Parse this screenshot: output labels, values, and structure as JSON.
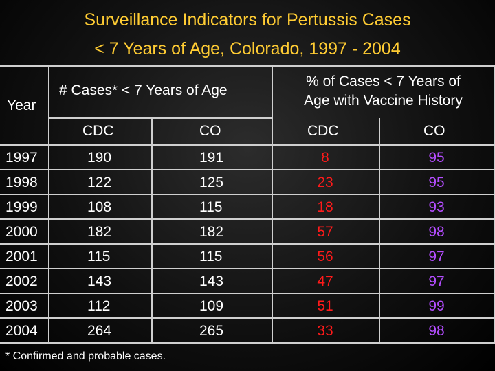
{
  "title": {
    "line1": "Surveillance Indicators for Pertussis Cases",
    "line2": "< 7 Years of Age, Colorado, 1997 - 2004"
  },
  "table": {
    "year_header": "Year",
    "group1_header": "# Cases* < 7 Years of Age",
    "group2_header_line1": "% of Cases < 7 Years of",
    "group2_header_line2": "Age with Vaccine History",
    "sub_headers": [
      "CDC",
      "CO",
      "CDC",
      "CO"
    ],
    "rows": [
      {
        "year": "1997",
        "cases_cdc": "190",
        "cases_co": "191",
        "pct_cdc": "8",
        "pct_co": "95"
      },
      {
        "year": "1998",
        "cases_cdc": "122",
        "cases_co": "125",
        "pct_cdc": "23",
        "pct_co": "95"
      },
      {
        "year": "1999",
        "cases_cdc": "108",
        "cases_co": "115",
        "pct_cdc": "18",
        "pct_co": "93"
      },
      {
        "year": "2000",
        "cases_cdc": "182",
        "cases_co": "182",
        "pct_cdc": "57",
        "pct_co": "98"
      },
      {
        "year": "2001",
        "cases_cdc": "115",
        "cases_co": "115",
        "pct_cdc": "56",
        "pct_co": "97"
      },
      {
        "year": "2002",
        "cases_cdc": "143",
        "cases_co": "143",
        "pct_cdc": "47",
        "pct_co": "97"
      },
      {
        "year": "2003",
        "cases_cdc": "112",
        "cases_co": "109",
        "pct_cdc": "51",
        "pct_co": "99"
      },
      {
        "year": "2004",
        "cases_cdc": "264",
        "cases_co": "265",
        "pct_cdc": "33",
        "pct_co": "98"
      }
    ]
  },
  "footnote": "* Confirmed and probable cases.",
  "colors": {
    "title": "#ffcc33",
    "pct_cdc": "#ff1a1a",
    "pct_co": "#b44dff",
    "text": "#ffffff"
  }
}
